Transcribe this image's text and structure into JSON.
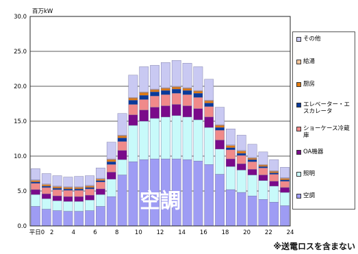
{
  "chart_data": {
    "type": "bar",
    "stacked": true,
    "title": "",
    "y_unit_label": "百万kW",
    "x_first_label": "平日0",
    "x_tick_labels": [
      "平日0",
      "2",
      "4",
      "6",
      "8",
      "10",
      "12",
      "14",
      "16",
      "18",
      "20",
      "22",
      "24"
    ],
    "y_tick_labels": [
      "0.0",
      "5.0",
      "10.0",
      "15.0",
      "20.0",
      "25.0",
      "30.0"
    ],
    "ylim": [
      0,
      30
    ],
    "grid": true,
    "legend_position": "right",
    "overlay_label": "空調",
    "footnote": "※送電ロスを含まない",
    "categories": [
      "1",
      "2",
      "3",
      "4",
      "5",
      "6",
      "7",
      "8",
      "9",
      "10",
      "11",
      "12",
      "13",
      "14",
      "15",
      "16",
      "17",
      "18",
      "19",
      "20",
      "21",
      "22",
      "23",
      "24"
    ],
    "series": [
      {
        "name": "空調",
        "color": "#9e9cf4",
        "values": [
          2.8,
          2.4,
          2.2,
          2.1,
          2.1,
          2.2,
          2.8,
          4.2,
          7.3,
          9.2,
          9.5,
          9.6,
          9.6,
          9.6,
          9.5,
          9.3,
          8.8,
          7.4,
          5.2,
          4.8,
          4.3,
          3.8,
          3.4,
          2.9
        ]
      },
      {
        "name": "照明",
        "color": "#c8fafa",
        "values": [
          1.7,
          1.5,
          1.4,
          1.4,
          1.4,
          1.5,
          1.7,
          2.5,
          2.2,
          5.2,
          5.5,
          5.8,
          6.0,
          6.2,
          6.1,
          5.9,
          5.3,
          3.6,
          3.3,
          3.2,
          3.0,
          2.7,
          2.3,
          1.9
        ]
      },
      {
        "name": "OA機器",
        "color": "#7a0a8a",
        "values": [
          0.7,
          0.7,
          0.7,
          0.7,
          0.7,
          0.7,
          0.8,
          1.0,
          1.3,
          1.5,
          1.6,
          1.6,
          1.6,
          1.6,
          1.6,
          1.6,
          1.5,
          1.3,
          1.1,
          0.9,
          0.8,
          0.8,
          0.7,
          0.7
        ]
      },
      {
        "name": "ショーケース冷蔵庫",
        "color": "#f08a8a",
        "values": [
          0.9,
          0.9,
          0.9,
          0.9,
          0.9,
          0.9,
          1.0,
          1.1,
          1.3,
          1.5,
          1.5,
          1.6,
          1.6,
          1.6,
          1.6,
          1.6,
          1.5,
          1.4,
          1.3,
          1.2,
          1.1,
          1.0,
          1.0,
          0.9
        ]
      },
      {
        "name": "エレベーター・エスカレータ",
        "color": "#0a3a9a",
        "values": [
          0.2,
          0.2,
          0.2,
          0.2,
          0.2,
          0.2,
          0.2,
          0.4,
          0.5,
          0.6,
          0.6,
          0.6,
          0.6,
          0.6,
          0.6,
          0.6,
          0.5,
          0.4,
          0.3,
          0.3,
          0.3,
          0.2,
          0.2,
          0.2
        ]
      },
      {
        "name": "厨房",
        "color": "#e07a10",
        "values": [
          0.2,
          0.2,
          0.2,
          0.2,
          0.2,
          0.2,
          0.2,
          0.3,
          0.3,
          0.3,
          0.4,
          0.3,
          0.3,
          0.3,
          0.3,
          0.3,
          0.3,
          0.3,
          0.3,
          0.3,
          0.2,
          0.2,
          0.2,
          0.2
        ]
      },
      {
        "name": "給湯",
        "color": "#f3c49a",
        "values": [
          0.1,
          0.1,
          0.1,
          0.1,
          0.1,
          0.1,
          0.1,
          0.1,
          0.1,
          0.1,
          0.1,
          0.1,
          0.1,
          0.1,
          0.1,
          0.1,
          0.1,
          0.1,
          0.1,
          0.1,
          0.1,
          0.1,
          0.1,
          0.1
        ]
      },
      {
        "name": "その他",
        "color": "#c9c9f2",
        "values": [
          1.6,
          1.5,
          1.5,
          1.4,
          1.5,
          1.4,
          1.5,
          2.4,
          3.1,
          3.2,
          3.6,
          3.4,
          3.6,
          3.7,
          3.5,
          3.4,
          3.0,
          2.5,
          2.3,
          2.2,
          1.9,
          1.8,
          1.6,
          1.5
        ]
      }
    ]
  }
}
